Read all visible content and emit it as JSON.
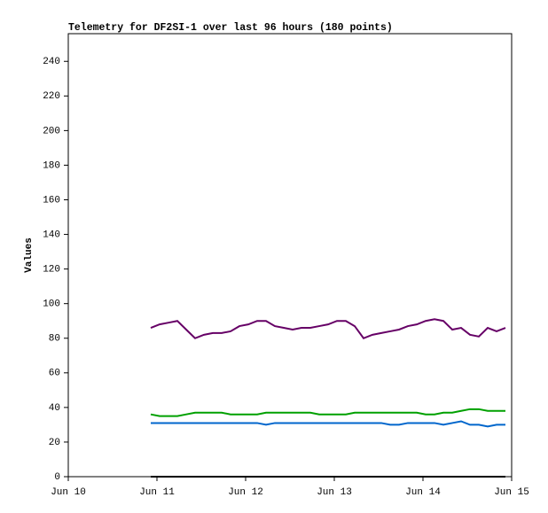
{
  "chart_data": {
    "type": "line",
    "title": "Telemetry for DF2SI-1 over last 96 hours (180 points)",
    "y_label": "Values",
    "x": [
      10.93,
      11.03,
      11.13,
      11.23,
      11.33,
      11.43,
      11.53,
      11.63,
      11.73,
      11.83,
      11.93,
      12.03,
      12.13,
      12.23,
      12.33,
      12.43,
      12.53,
      12.63,
      12.73,
      12.83,
      12.93,
      13.03,
      13.13,
      13.23,
      13.33,
      13.43,
      13.53,
      13.63,
      13.73,
      13.83,
      13.93,
      14.03,
      14.13,
      14.23,
      14.33,
      14.43,
      14.53,
      14.63,
      14.73,
      14.83,
      14.93
    ],
    "series": [
      {
        "color": "#660066",
        "values": [
          86,
          88,
          89,
          90,
          85,
          80,
          82,
          83,
          83,
          84,
          87,
          88,
          90,
          90,
          87,
          86,
          85,
          86,
          86,
          87,
          88,
          90,
          90,
          87,
          80,
          82,
          83,
          84,
          85,
          87,
          88,
          90,
          91,
          90,
          85,
          86,
          82,
          81,
          86,
          84,
          86
        ]
      },
      {
        "color": "#00a000",
        "values": [
          36,
          35,
          35,
          35,
          36,
          37,
          37,
          37,
          37,
          36,
          36,
          36,
          36,
          37,
          37,
          37,
          37,
          37,
          37,
          36,
          36,
          36,
          36,
          37,
          37,
          37,
          37,
          37,
          37,
          37,
          37,
          36,
          36,
          37,
          37,
          38,
          39,
          39,
          38,
          38,
          38
        ]
      },
      {
        "color": "#0066cc",
        "values": [
          31,
          31,
          31,
          31,
          31,
          31,
          31,
          31,
          31,
          31,
          31,
          31,
          31,
          30,
          31,
          31,
          31,
          31,
          31,
          31,
          31,
          31,
          31,
          31,
          31,
          31,
          31,
          30,
          30,
          31,
          31,
          31,
          31,
          30,
          31,
          32,
          30,
          30,
          29,
          30,
          30
        ]
      },
      {
        "color": "#000000",
        "values": [
          0,
          0,
          0,
          0,
          0,
          0,
          0,
          0,
          0,
          0,
          0,
          0,
          0,
          0,
          0,
          0,
          0,
          0,
          0,
          0,
          0,
          0,
          0,
          0,
          0,
          0,
          0,
          0,
          0,
          0,
          0,
          0,
          0,
          0,
          0,
          0,
          0,
          0,
          0,
          0,
          0
        ]
      }
    ],
    "xlim": [
      10,
      15
    ],
    "xticks": [
      {
        "value": 10,
        "label": "Jun 10"
      },
      {
        "value": 11,
        "label": "Jun 11"
      },
      {
        "value": 12,
        "label": "Jun 12"
      },
      {
        "value": 13,
        "label": "Jun 13"
      },
      {
        "value": 14,
        "label": "Jun 14"
      },
      {
        "value": 15,
        "label": "Jun 15"
      }
    ],
    "ylim": [
      0,
      256
    ],
    "yticks": [
      0,
      20,
      40,
      60,
      80,
      100,
      120,
      140,
      160,
      180,
      200,
      220,
      240
    ]
  }
}
